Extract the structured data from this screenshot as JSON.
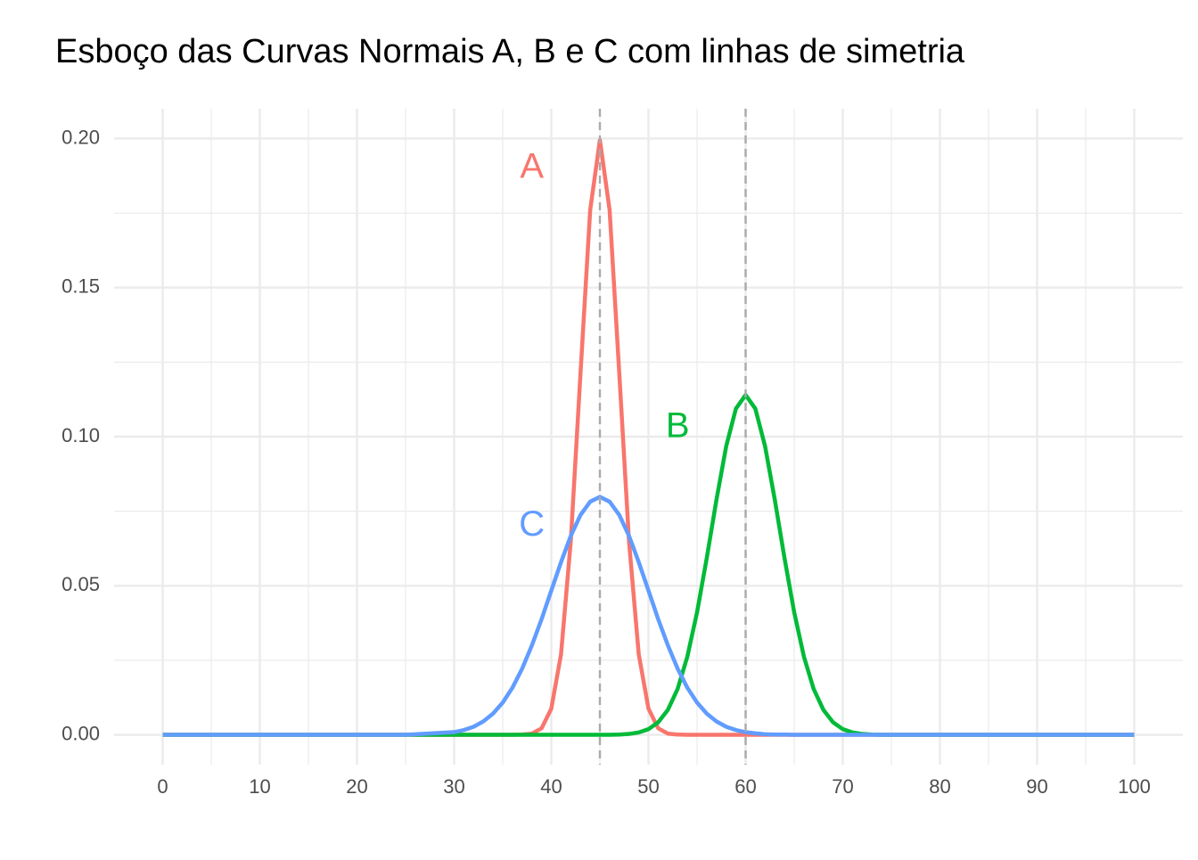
{
  "chart_data": {
    "type": "line",
    "title": "Esboço das Curvas Normais A, B e C com linhas de simetria",
    "x": [
      0,
      10,
      20,
      25,
      30,
      31,
      32,
      33,
      34,
      35,
      36,
      37,
      38,
      39,
      40,
      41,
      42,
      43,
      44,
      45,
      46,
      47,
      48,
      49,
      50,
      51,
      52,
      53,
      54,
      55,
      56,
      57,
      58,
      59,
      60,
      61,
      62,
      63,
      64,
      65,
      66,
      67,
      68,
      69,
      70,
      71,
      72,
      73,
      74,
      75,
      80,
      90,
      100
    ],
    "series": [
      {
        "name": "A",
        "color": "#F8766D",
        "values": [
          0,
          0,
          0,
          0,
          0,
          0,
          0,
          0,
          0,
          0,
          0,
          0.0001,
          0.0004,
          0.0022,
          0.0088,
          0.027,
          0.0648,
          0.121,
          0.176,
          0.1995,
          0.176,
          0.121,
          0.0648,
          0.027,
          0.0088,
          0.0022,
          0.0004,
          0.0001,
          0,
          0,
          0,
          0,
          0,
          0,
          0,
          0,
          0,
          0,
          0,
          0,
          0,
          0,
          0,
          0,
          0,
          0,
          0,
          0,
          0,
          0,
          0,
          0,
          0
        ]
      },
      {
        "name": "B",
        "color": "#00BA38",
        "values": [
          0,
          0,
          0,
          0,
          0,
          0,
          0,
          0,
          0,
          0,
          0,
          0,
          0,
          0,
          0,
          0,
          0,
          0,
          0,
          0,
          0,
          0.0001,
          0.0003,
          0.0008,
          0.0019,
          0.0042,
          0.0084,
          0.0154,
          0.0262,
          0.0411,
          0.0593,
          0.0789,
          0.0968,
          0.1094,
          0.114,
          0.1094,
          0.0968,
          0.0789,
          0.0593,
          0.0411,
          0.0262,
          0.0154,
          0.0084,
          0.0042,
          0.0019,
          0.0008,
          0.0003,
          0.0001,
          0,
          0,
          0,
          0,
          0
        ]
      },
      {
        "name": "C",
        "color": "#619CFF",
        "values": [
          0,
          0,
          0,
          0,
          0.0009,
          0.0016,
          0.0027,
          0.0045,
          0.0071,
          0.0108,
          0.0158,
          0.0222,
          0.03,
          0.0388,
          0.0484,
          0.0579,
          0.0667,
          0.0737,
          0.0782,
          0.0798,
          0.0782,
          0.0737,
          0.0667,
          0.0579,
          0.0484,
          0.0388,
          0.03,
          0.0222,
          0.0158,
          0.0108,
          0.0071,
          0.0045,
          0.0027,
          0.0016,
          0.0009,
          0.0005,
          0.0002,
          0.0001,
          0.0001,
          0,
          0,
          0,
          0,
          0,
          0,
          0,
          0,
          0,
          0,
          0,
          0,
          0,
          0
        ]
      }
    ],
    "annotations": [
      {
        "text": "A",
        "x": 38,
        "y": 0.19,
        "color": "#F8766D"
      },
      {
        "text": "B",
        "x": 53,
        "y": 0.103,
        "color": "#00BA38"
      },
      {
        "text": "C",
        "x": 38,
        "y": 0.07,
        "color": "#619CFF"
      }
    ],
    "vlines": [
      45,
      60
    ],
    "vline_color": "#AAAAAA",
    "xlim": [
      -5,
      105
    ],
    "ylim": [
      -0.01,
      0.21
    ],
    "xticks": [
      0,
      10,
      20,
      30,
      40,
      50,
      60,
      70,
      80,
      90,
      100
    ],
    "yticks": [
      {
        "value": 0,
        "label": "0.00"
      },
      {
        "value": 0.05,
        "label": "0.05"
      },
      {
        "value": 0.1,
        "label": "0.10"
      },
      {
        "value": 0.15,
        "label": "0.15"
      },
      {
        "value": 0.2,
        "label": "0.20"
      }
    ],
    "x_minor_grid": [
      5,
      15,
      25,
      35,
      45,
      55,
      65,
      75,
      85,
      95
    ],
    "y_minor_grid": [
      0.025,
      0.075,
      0.125,
      0.175
    ],
    "grid": true
  }
}
